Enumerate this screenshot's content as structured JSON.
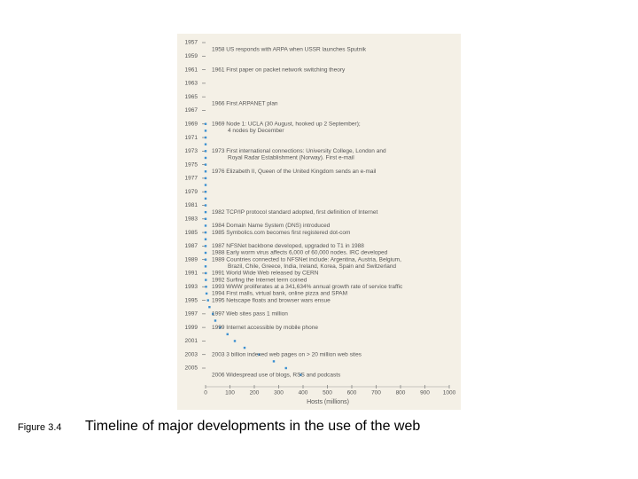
{
  "chart_data": {
    "type": "scatter",
    "caption_label": "Figure 3.4",
    "caption": "Timeline of major developments in the use of the web",
    "x_label": "Hosts (millions)",
    "color": "#3a8fd0",
    "y_inverted": true,
    "xlim": [
      0,
      1000
    ],
    "xticks": [
      0,
      100,
      200,
      300,
      400,
      500,
      600,
      700,
      800,
      900,
      1000
    ],
    "ylim": [
      1956,
      2007
    ],
    "yticks": [
      1957,
      1959,
      1961,
      1963,
      1965,
      1967,
      1969,
      1971,
      1973,
      1975,
      1977,
      1979,
      1981,
      1983,
      1985,
      1987,
      1989,
      1991,
      1993,
      1995,
      1997,
      1999,
      2001,
      2003,
      2005
    ],
    "y": [
      1969,
      1970,
      1971,
      1972,
      1973,
      1974,
      1975,
      1976,
      1977,
      1978,
      1979,
      1980,
      1981,
      1982,
      1983,
      1984,
      1985,
      1986,
      1987,
      1988,
      1989,
      1990,
      1991,
      1992,
      1993,
      1994,
      1995,
      1996,
      1997,
      1998,
      1999,
      2000,
      2001,
      2002,
      2003,
      2004,
      2005,
      2006
    ],
    "x": [
      0,
      0,
      0,
      0,
      0,
      0,
      0,
      0,
      0,
      0,
      0,
      0,
      0,
      0,
      0,
      0,
      0,
      0,
      0,
      0,
      0,
      0,
      1,
      1,
      2,
      4,
      10,
      16,
      30,
      40,
      60,
      90,
      120,
      160,
      220,
      280,
      330,
      390
    ],
    "annotations": [
      {
        "year": 1958,
        "lines": [
          "1958 US responds with ARPA when USSR launches Sputnik"
        ]
      },
      {
        "year": 1961,
        "lines": [
          "1961 First paper on packet network switching theory"
        ]
      },
      {
        "year": 1966,
        "lines": [
          "1966 First ARPANET plan"
        ]
      },
      {
        "year": 1969,
        "lines": [
          "1969 Node 1: UCLA (30 August, hooked up 2 September);",
          "4 nodes by December"
        ]
      },
      {
        "year": 1973,
        "lines": [
          "1973 First international connections: University College, London and",
          "Royal Radar Establishment (Norway). First e-mail"
        ]
      },
      {
        "year": 1976,
        "lines": [
          "1976 Elizabeth II, Queen of the United Kingdom sends an e-mail"
        ]
      },
      {
        "year": 1982,
        "lines": [
          "1982 TCP/IP protocol standard adopted, first definition of Internet"
        ]
      },
      {
        "year": 1984,
        "lines": [
          "1984 Domain Name System (DNS) introduced"
        ]
      },
      {
        "year": 1985,
        "lines": [
          "1985 Symbolics.com becomes first registered dot-com"
        ]
      },
      {
        "year": 1987,
        "lines": [
          "1987 NFSNet backbone developed, upgraded to T1 in 1988"
        ]
      },
      {
        "year": 1988,
        "lines": [
          "1988 Early worm virus affects 6,000 of 60,000 nodes. IRC developed"
        ]
      },
      {
        "year": 1989,
        "lines": [
          "1989 Countries connected to NFSNet include: Argentina, Austria, Belgium,",
          "Brazil, Chile, Greece, India, Ireland, Korea, Spain and Switzerland"
        ]
      },
      {
        "year": 1991,
        "lines": [
          "1991 World Wide Web released by CERN"
        ]
      },
      {
        "year": 1992,
        "lines": [
          "1992 Surfing the Internet term coined"
        ]
      },
      {
        "year": 1993,
        "lines": [
          "1993 WWW proliferates at a 341,634% annual growth rate of service traffic"
        ]
      },
      {
        "year": 1994,
        "lines": [
          "1994 First malls, virtual bank, online pizza and SPAM"
        ]
      },
      {
        "year": 1995,
        "lines": [
          "1995 Netscape floats and browser wars ensue"
        ]
      },
      {
        "year": 1997,
        "lines": [
          "1997 Web sites pass 1 million"
        ]
      },
      {
        "year": 1999,
        "lines": [
          "1999 Internet accessible by mobile phone"
        ]
      },
      {
        "year": 2003,
        "lines": [
          "2003 3 billion indexed web pages on > 20 million web sites"
        ]
      },
      {
        "year": 2006,
        "lines": [
          "2006 Widespread use of blogs, RSS and podcasts"
        ]
      }
    ]
  }
}
